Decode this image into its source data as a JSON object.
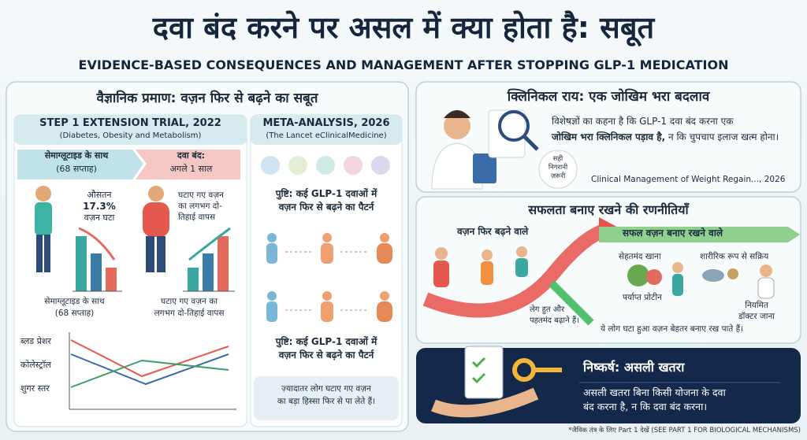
{
  "header": {
    "title": "दवा बंद करने पर असल में क्या होता है: सबूत",
    "subtitle": "EVIDENCE-BASED CONSEQUENCES AND MANAGEMENT AFTER STOPPING GLP-1 MEDICATION"
  },
  "evidence": {
    "title": "वैज्ञानिक प्रमाण: वज़न फिर से बढ़ने का सबूत",
    "step1": {
      "title": "STEP 1 EXTENSION TRIAL, 2022",
      "subtitle": "(Diabetes, Obesity and Metabolism)",
      "phase_on": [
        "सेमाग्लूटाइड के साथ",
        "(68 सप्ताह)"
      ],
      "phase_off": [
        "दवा बंद:",
        "अगले 1 साल"
      ],
      "loss_note": [
        "औसतन",
        "17.3%",
        "वज़न घटा"
      ],
      "regain_note": [
        "घटाए गए वज़न",
        "का लगभग दो-",
        "तिहाई वापस"
      ],
      "caption_on": [
        "सेमाग्लूटाइड के साथ",
        "(68 सप्ताह)"
      ],
      "caption_off": [
        "घटाए गए वज़न का",
        "लगभग दो-तिहाई वापस"
      ],
      "markers": [
        "ब्लड प्रेशर",
        "कोलेस्ट्रॉल",
        "शुगर स्तर"
      ]
    },
    "meta": {
      "title": "META-ANALYSIS, 2026",
      "subtitle": "(The Lancet eClinicalMedicine)",
      "findings": [
        [
          "पुष्टि: कई GLP-1 दवाओं में",
          "वज़न फिर से बढ़ने का पैटर्न"
        ],
        [
          "पुष्टि: कई GLP-1 दवाओं में",
          "वज़न फिर से बढ़ने का पैटर्न"
        ]
      ],
      "conclusion": [
        "ज़्यादातर लोग घटाए गए वज़न",
        "का बड़ा हिस्सा फिर से पा लेते हैं।"
      ]
    }
  },
  "clinical": {
    "title": "क्लिनिकल राय: एक जोखिम भरा बदलाव",
    "text_start": "विशेषज्ञों का कहना है कि GLP-1 दवा बंद करना एक",
    "text_bold": "जोखिम भरा क्लिनिकल पड़ाव है,",
    "text_end": "न कि चुपचाप इलाज खत्म होना।",
    "badge": [
      "सही",
      "निगरानी",
      "ज़रूरी"
    ],
    "citation": "Clinical Management of Weight Regain..., 2026"
  },
  "strategies": {
    "title": "सफलता बनाए रखने की रणनीतियाँ",
    "regain_label": "वज़न फिर बढ़ने वाले",
    "success_label": "सफल वज़न बनाए रखने वाले",
    "items": [
      "सेहतमंद खाना",
      "शारीरिक रूप से सक्रिय",
      "पर्याप्त प्रोटीन",
      [
        "नियमित",
        "डॉक्टर जाना"
      ]
    ],
    "regain_note": [
      "लेग हुत और",
      "पहतमंद बढ़ाने हैं।"
    ],
    "success_note": "ये लोग घटा हुआ वज़न बेहतर बनाए रख पाते हैं।"
  },
  "conclusion": {
    "title": "निष्कर्ष: असली खतरा",
    "text": [
      "असली खतरा बिना किसी योजना के दवा",
      "बंद करना है, न कि दवा बंद करना।"
    ]
  },
  "footnote": "*जैविक तंत्र के लिए Part 1 देखें (SEE PART 1 FOR BIOLOGICAL MECHANISMS)"
}
